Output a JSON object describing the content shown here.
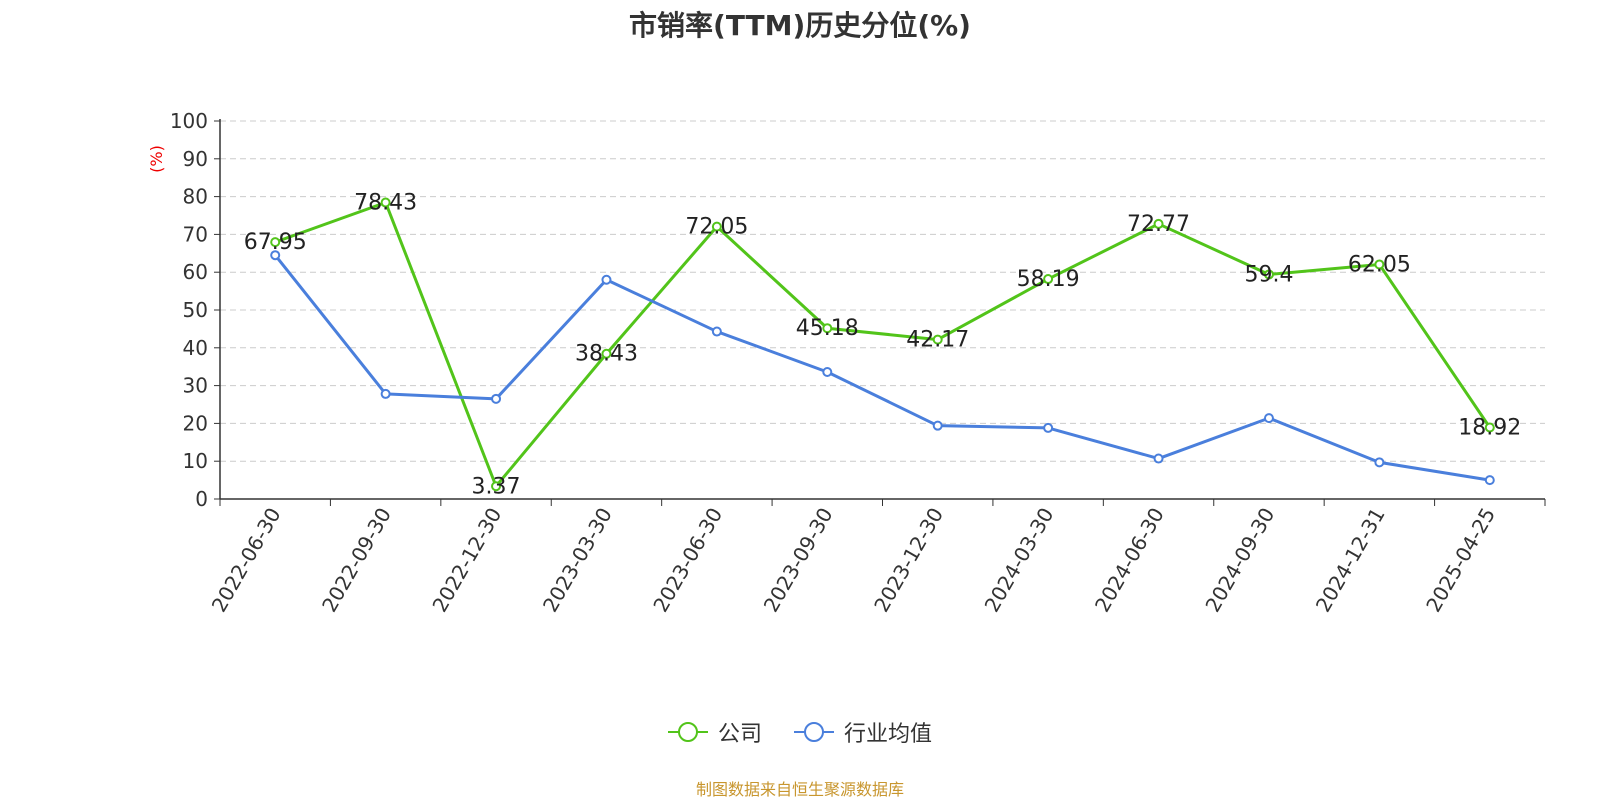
{
  "title": "市销率(TTM)历史分位(%)",
  "source": "制图数据来自恒生聚源数据库",
  "chart_data": {
    "type": "line",
    "title": "市销率(TTM)历史分位(%)",
    "ylabel": "(%)",
    "xlabel": "",
    "ylim": [
      0,
      100
    ],
    "yticks": [
      0,
      10,
      20,
      30,
      40,
      50,
      60,
      70,
      80,
      90,
      100
    ],
    "grid": true,
    "legend_position": "bottom",
    "categories": [
      "2022-06-30",
      "2022-09-30",
      "2022-12-30",
      "2023-03-30",
      "2023-06-30",
      "2023-09-30",
      "2023-12-30",
      "2024-03-30",
      "2024-06-30",
      "2024-09-30",
      "2024-12-31",
      "2025-04-25"
    ],
    "series": [
      {
        "name": "公司",
        "color": "#52c41a",
        "show_labels": true,
        "values": [
          67.95,
          78.43,
          3.37,
          38.43,
          72.05,
          45.18,
          42.17,
          58.19,
          72.77,
          59.4,
          62.05,
          18.92
        ]
      },
      {
        "name": "行业均值",
        "color": "#4a7fdc",
        "show_labels": false,
        "values": [
          64.5,
          27.8,
          26.5,
          58.0,
          44.3,
          33.6,
          19.4,
          18.8,
          10.7,
          21.4,
          9.7,
          5.0
        ]
      }
    ]
  }
}
